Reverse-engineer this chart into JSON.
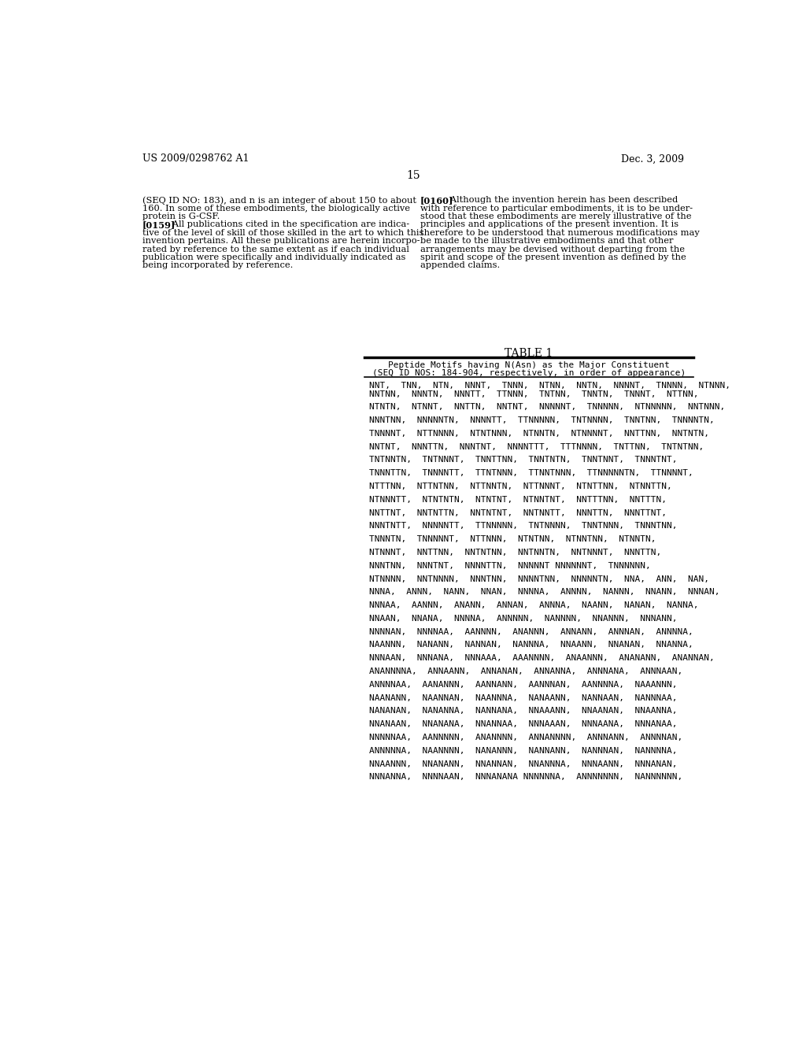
{
  "background_color": "#ffffff",
  "header_left": "US 2009/0298762 A1",
  "header_right": "Dec. 3, 2009",
  "page_number": "15",
  "left_col_text": [
    "(SEQ ID NO: 183), and n is an integer of about 150 to about",
    "160. In some of these embodiments, the biologically active",
    "protein is G-CSF.",
    "[0159]",
    "All publications cited in the specification are indica-",
    "tive of the level of skill of those skilled in the art to which this",
    "invention pertains. All these publications are herein incorpo-",
    "rated by reference to the same extent as if each individual",
    "publication were specifically and individually indicated as",
    "being incorporated by reference."
  ],
  "right_col_text": [
    "[0160]",
    "Although the invention herein has been described",
    "with reference to particular embodiments, it is to be under-",
    "stood that these embodiments are merely illustrative of the",
    "principles and applications of the present invention. It is",
    "therefore to be understood that numerous modifications may",
    "be made to the illustrative embodiments and that other",
    "arrangements may be devised without departing from the",
    "spirit and scope of the present invention as defined by the",
    "appended claims."
  ],
  "table_title": "TABLE 1",
  "table_header_line1": "Peptide Motifs having N(Asn) as the Major Constituent",
  "table_header_line2": "(SEQ ID NOS: 184-904, respectively, in order of appearance)",
  "table_content_lines": [
    "NNT,  TNN,  NTN,  NNNT,  TNNN,  NTNN,  NNTN,  NNNNT,  TNNNN,  NTNNN,",
    "NNTNN,  NNNTN,  NNNTT,  TTNNN,  TNTNN,  TNNTN,  TNNNT,  NTTNN,",
    "",
    "NTNTN,  NTNNT,  NNTTN,  NNTNT,  NNNNNT,  TNNNNN,  NTNNNNN,  NNTNNN,",
    "",
    "NNNTNN,  NNNNNTN,  NNNNTT,  TTNNNNN,  TNTNNNN,  TNNTNN,  TNNNNTN,",
    "",
    "TNNNNT,  NTTNNNN,  NTNTNNN,  NTNNTN,  NTNNNNT,  NNTTNN,  NNTNTN,",
    "",
    "NNTNT,  NNNTTN,  NNNTNT,  NNNNTTT,  TTTNNNN,  TNTTNN,  TNTNTNN,",
    "",
    "TNTNNTN,  TNTNNNT,  TNNTTNN,  TNNTNTN,  TNNTNNT,  TNNNTNT,",
    "",
    "TNNNTTN,  TNNNNTT,  TTNTNNN,  TTNNTNNN,  TTNNNNNTN,  TTNNNNT,",
    "",
    "NTTTNN,  NTTNTNN,  NTTNNTN,  NTTNNNT,  NTNTTNN,  NTNNTTN,",
    "",
    "NTNNNTT,  NTNTNTN,  NTNTNT,  NTNNTNT,  NNTTTNN,  NNTTTN,",
    "",
    "NNTTNT,  NNTNTTN,  NNTNTNT,  NNTNNTT,  NNNTTN,  NNNTTNT,",
    "",
    "NNNTNTТ,  NNNNNTТ,  TTNNNNN,  TNTNNNN,  TNNTNNN,  TNNNTNN,",
    "",
    "TNNNTN,  TNNNNNT,  NTTNNN,  NTNTNN,  NTNNTNN,  NTNNTN,",
    "",
    "NTNNNT,  NNTTNN,  NNTNTNN,  NNTNNTN,  NNTNNNT,  NNNTTN,",
    "",
    "NNNTNN,  NNNTNT,  NNNNTTN,  NNNNNT NNNNNNT,  TNNNNNN,",
    "",
    "NTNNNN,  NNTNNNN,  NNNTNN,  NNNNTNN,  NNNNNTN,  NNA,  ANN,  NAN,",
    "",
    "NNNA,  ANNN,  NANN,  NNAN,  NNNNA,  ANNNN,  NANNN,  NNANN,  NNNAN,",
    "",
    "NNNAA,  AANNN,  ANANN,  ANNAN,  ANNNA,  NAANN,  NANAN,  NANNA,",
    "",
    "NNAAN,  NNANA,  NNNNA,  ANNNNN,  NANNNN,  NNANNN,  NNNANN,",
    "",
    "NNNNAN,  NNNNAA,  AANNNN,  ANANNN,  ANNANN,  ANNNAN,  ANNNNA,",
    "",
    "NAANNN,  NANANN,  NANNAN,  NANNNA,  NNAANN,  NNANAN,  NNANNA,",
    "",
    "NNNAAN,  NNNANA,  NNNAAA,  AAANNNN,  ANAANNN,  ANANANN,  ANANNAN,",
    "",
    "ANANNNNA,  ANNAANN,  ANNANAN,  ANNANNA,  ANNNANA,  ANNNAAN,",
    "",
    "ANNNNAA,  AANANNN,  AANNANN,  AANNNAN,  AANNNNA,  NAAANNN,",
    "",
    "NAANANN,  NAANNAN,  NAANNNA,  NANAANN,  NANNAAN,  NANNNAA,",
    "",
    "NANANAN,  NANANNA,  NANNANA,  NNAAANN,  NNAANAN,  NNAANNA,",
    "",
    "NNANAAN,  NNANANA,  NNANNAA,  NNNAAAN,  NNNAANA,  NNNANAA,",
    "",
    "NNNNNAA,  AANNNNN,  ANANNNN,  ANNANNNN,  ANNNANN,  ANNNNAN,",
    "",
    "ANNNNNA,  NAANNNN,  NANANNN,  NANNANN,  NANNNAN,  NANNNNA,",
    "",
    "NNAANNN,  NNANANN,  NNANNAN,  NNANNNA,  NNNAANN,  NNNANAN,",
    "",
    "NNNANNA,  NNNNAAN,  NNNANANA NNNNNNA,  ANNNNNNN,  NANNNNNN,"
  ]
}
